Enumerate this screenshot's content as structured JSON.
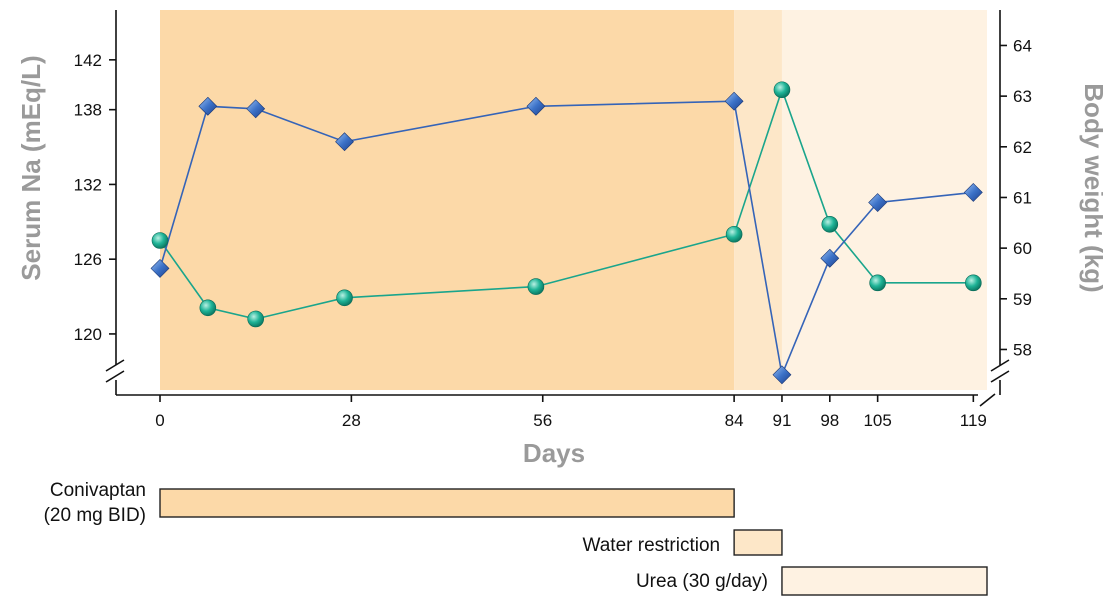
{
  "chart_data": {
    "type": "line",
    "xlabel": "Days",
    "ylabel_left": "Serum Na (mEq/L)",
    "ylabel_right": "Body weight (kg)",
    "x_ticks": [
      0,
      28,
      56,
      84,
      91,
      98,
      105,
      119
    ],
    "y_left_ticks": [
      120,
      126,
      132,
      138,
      142
    ],
    "y_right_ticks": [
      58,
      59,
      60,
      61,
      62,
      63,
      64
    ],
    "ylim_left": [
      115.5,
      146
    ],
    "ylim_right": [
      57.2,
      64.7
    ],
    "xlim": [
      -2,
      122
    ],
    "series": [
      {
        "axis": "left",
        "marker": "circle",
        "color": "#1aa58c",
        "x": [
          0,
          7,
          14,
          27,
          55,
          84,
          91,
          98,
          105,
          119
        ],
        "y": [
          127.5,
          122.1,
          121.2,
          122.9,
          123.8,
          128.0,
          139.6,
          128.8,
          124.1,
          124.1
        ]
      },
      {
        "axis": "right",
        "marker": "diamond",
        "color": "#3564b8",
        "x": [
          0,
          7,
          14,
          27,
          55,
          84,
          91,
          98,
          105,
          119
        ],
        "y": [
          59.6,
          62.8,
          62.75,
          62.1,
          62.8,
          62.9,
          57.5,
          59.8,
          60.9,
          61.1
        ]
      }
    ],
    "phases": [
      {
        "start": 0,
        "end": 84,
        "color": "#fcd9a8"
      },
      {
        "start": 84,
        "end": 91,
        "color": "#fde7c8"
      },
      {
        "start": 91,
        "end": 121,
        "color": "#fef2e2"
      }
    ]
  },
  "treatments": [
    {
      "lines": [
        "Conivaptan",
        "(20 mg BID)"
      ],
      "start": 0,
      "end": 84,
      "color": "#fcd9a8"
    },
    {
      "lines": [
        "Water restriction"
      ],
      "start": 84,
      "end": 91,
      "color": "#fde7c8"
    },
    {
      "lines": [
        "Urea (30 g/day)"
      ],
      "start": 91,
      "end": 121,
      "color": "#fef2e2"
    }
  ]
}
